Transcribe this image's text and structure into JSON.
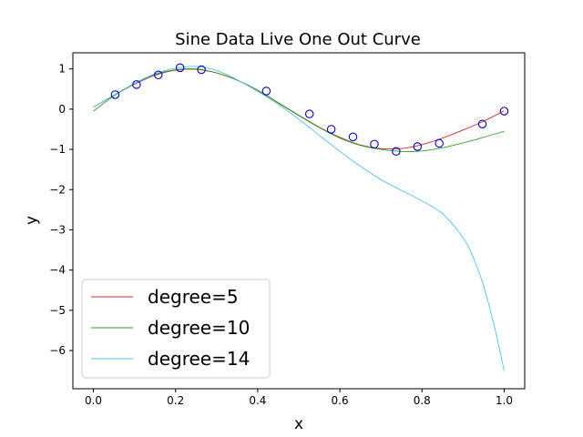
{
  "chart_data": {
    "type": "line",
    "title": "Sine Data Live One Out Curve",
    "xlabel": "x",
    "ylabel": "y",
    "xlim": [
      -0.05,
      1.05
    ],
    "ylim": [
      -6.95,
      1.4
    ],
    "grid": false,
    "legend_position": "lower-left",
    "x_ticks": [
      {
        "value": 0.0,
        "label": "0.0"
      },
      {
        "value": 0.2,
        "label": "0.2"
      },
      {
        "value": 0.4,
        "label": "0.4"
      },
      {
        "value": 0.6,
        "label": "0.6"
      },
      {
        "value": 0.8,
        "label": "0.8"
      },
      {
        "value": 1.0,
        "label": "1.0"
      }
    ],
    "y_ticks": [
      {
        "value": 1,
        "label": "1"
      },
      {
        "value": 0,
        "label": "0"
      },
      {
        "value": -1,
        "label": "−1"
      },
      {
        "value": -2,
        "label": "−2"
      },
      {
        "value": -3,
        "label": "−3"
      },
      {
        "value": -4,
        "label": "−4"
      },
      {
        "value": -5,
        "label": "−5"
      },
      {
        "value": -6,
        "label": "−6"
      }
    ],
    "series": [
      {
        "name": "degree=5",
        "color": "#d62728",
        "x": [
          0.0,
          0.05,
          0.1,
          0.15,
          0.2,
          0.25,
          0.3,
          0.35,
          0.4,
          0.45,
          0.5,
          0.55,
          0.6,
          0.65,
          0.7,
          0.75,
          0.8,
          0.85,
          0.9,
          0.95,
          1.0
        ],
        "y": [
          0.05,
          0.34,
          0.62,
          0.84,
          0.97,
          0.99,
          0.9,
          0.72,
          0.47,
          0.16,
          -0.15,
          -0.45,
          -0.7,
          -0.89,
          -0.98,
          -0.98,
          -0.88,
          -0.72,
          -0.52,
          -0.3,
          -0.04
        ]
      },
      {
        "name": "degree=10",
        "color": "#2ca02c",
        "x": [
          0.0,
          0.05,
          0.1,
          0.15,
          0.2,
          0.25,
          0.3,
          0.35,
          0.4,
          0.45,
          0.5,
          0.55,
          0.6,
          0.65,
          0.7,
          0.75,
          0.8,
          0.85,
          0.9,
          0.95,
          1.0
        ],
        "y": [
          -0.05,
          0.33,
          0.63,
          0.86,
          0.98,
          1.0,
          0.9,
          0.72,
          0.46,
          0.15,
          -0.16,
          -0.46,
          -0.72,
          -0.9,
          -1.0,
          -1.05,
          -1.04,
          -0.96,
          -0.84,
          -0.7,
          -0.55
        ]
      },
      {
        "name": "degree=14",
        "color": "#4dc3f0",
        "x": [
          0.0,
          0.05,
          0.1,
          0.15,
          0.2,
          0.25,
          0.3,
          0.35,
          0.4,
          0.45,
          0.5,
          0.55,
          0.6,
          0.65,
          0.7,
          0.75,
          0.8,
          0.85,
          0.9,
          0.925,
          0.95,
          0.975,
          1.0
        ],
        "y": [
          0.05,
          0.35,
          0.64,
          0.88,
          1.02,
          1.06,
          0.96,
          0.73,
          0.44,
          0.12,
          -0.25,
          -0.65,
          -1.05,
          -1.42,
          -1.75,
          -2.02,
          -2.28,
          -2.6,
          -3.2,
          -3.7,
          -4.4,
          -5.35,
          -6.5
        ]
      }
    ],
    "points": {
      "name": "data",
      "color": "#0000cd",
      "x": [
        0.053,
        0.105,
        0.158,
        0.211,
        0.263,
        0.421,
        0.526,
        0.579,
        0.632,
        0.684,
        0.737,
        0.789,
        0.842,
        0.947,
        1.0
      ],
      "y": [
        0.36,
        0.61,
        0.85,
        1.03,
        0.98,
        0.45,
        -0.12,
        -0.5,
        -0.69,
        -0.87,
        -1.05,
        -0.93,
        -0.85,
        -0.37,
        -0.05
      ]
    }
  }
}
